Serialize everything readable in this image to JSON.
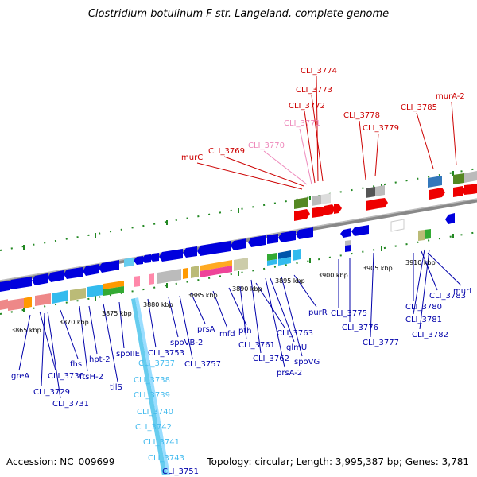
{
  "title": "Clostridium botulinum F str. Langeland, complete genome",
  "footer": {
    "accession": "Accession: NC_009699",
    "topology": "Topology: circular; Length: 3,995,387 bp; Genes: 3,781"
  },
  "kbp_ticks": [
    "3865 kbp",
    "3870 kbp",
    "3875 kbp",
    "3880 kbp",
    "3885 kbp",
    "3890 kbp",
    "3895 kbp",
    "3900 kbp",
    "3905 kbp",
    "3910 kbp"
  ],
  "upper_labels": [
    {
      "name": "CLI_3774",
      "color": "#cc0000"
    },
    {
      "name": "CLI_3773",
      "color": "#cc0000"
    },
    {
      "name": "CLI_3772",
      "color": "#cc0000"
    },
    {
      "name": "CLI_3771",
      "color": "#ee88bb"
    },
    {
      "name": "CLI_3770",
      "color": "#ee88bb"
    },
    {
      "name": "CLI_3769",
      "color": "#cc0000"
    },
    {
      "name": "murC",
      "color": "#cc0000"
    },
    {
      "name": "CLI_3778",
      "color": "#cc0000"
    },
    {
      "name": "CLI_3779",
      "color": "#cc0000"
    },
    {
      "name": "CLI_3785",
      "color": "#cc0000"
    },
    {
      "name": "murA-2",
      "color": "#cc0000"
    }
  ],
  "lower_labels": [
    {
      "name": "greA",
      "color": "#0000aa"
    },
    {
      "name": "CLI_3730",
      "color": "#0000aa"
    },
    {
      "name": "CLI_3729",
      "color": "#0000aa"
    },
    {
      "name": "CLI_3731",
      "color": "#0000aa"
    },
    {
      "name": "fhs",
      "color": "#0000aa"
    },
    {
      "name": "ftsH-2",
      "color": "#0000aa"
    },
    {
      "name": "hpt-2",
      "color": "#0000aa"
    },
    {
      "name": "tilS",
      "color": "#0000aa"
    },
    {
      "name": "spoIIE",
      "color": "#0000aa"
    },
    {
      "name": "CLI_3753",
      "color": "#0000aa"
    },
    {
      "name": "spoVB-2",
      "color": "#0000aa"
    },
    {
      "name": "CLI_3757",
      "color": "#0000aa"
    },
    {
      "name": "prsA",
      "color": "#0000aa"
    },
    {
      "name": "mfd",
      "color": "#0000aa"
    },
    {
      "name": "pth",
      "color": "#0000aa"
    },
    {
      "name": "CLI_3761",
      "color": "#0000aa"
    },
    {
      "name": "CLI_3763",
      "color": "#0000aa"
    },
    {
      "name": "CLI_3762",
      "color": "#0000aa"
    },
    {
      "name": "glmU",
      "color": "#0000aa"
    },
    {
      "name": "prsA-2",
      "color": "#0000aa"
    },
    {
      "name": "spoVG",
      "color": "#0000aa"
    },
    {
      "name": "purR",
      "color": "#0000aa"
    },
    {
      "name": "CLI_3775",
      "color": "#0000aa"
    },
    {
      "name": "CLI_3776",
      "color": "#0000aa"
    },
    {
      "name": "CLI_3777",
      "color": "#0000aa"
    },
    {
      "name": "CLI_3780",
      "color": "#0000aa"
    },
    {
      "name": "CLI_3783",
      "color": "#0000aa"
    },
    {
      "name": "CLI_3781",
      "color": "#0000aa"
    },
    {
      "name": "CLI_3782",
      "color": "#0000aa"
    },
    {
      "name": "murI",
      "color": "#0000aa"
    }
  ],
  "rna_labels": [
    {
      "name": "CLI_3737",
      "color": "#44bbee"
    },
    {
      "name": "CLI_3738",
      "color": "#44bbee"
    },
    {
      "name": "CLI_3739",
      "color": "#44bbee"
    },
    {
      "name": "CLI_3740",
      "color": "#44bbee"
    },
    {
      "name": "CLI_3742",
      "color": "#44bbee"
    },
    {
      "name": "CLI_3741",
      "color": "#44bbee"
    },
    {
      "name": "CLI_3743",
      "color": "#44bbee"
    },
    {
      "name": "CLI_3751",
      "color": "#0000aa"
    }
  ]
}
